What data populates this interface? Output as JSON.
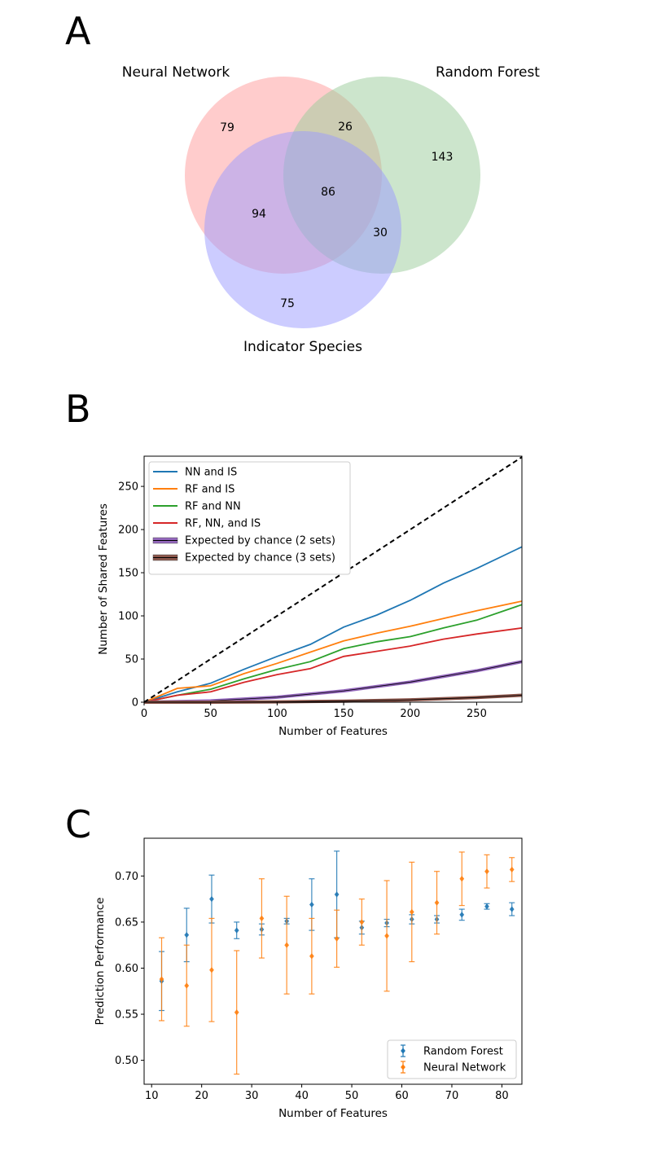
{
  "panel_labels": {
    "a": "A",
    "b": "B",
    "c": "C"
  },
  "venn": {
    "sets": [
      "Neural Network",
      "Random Forest",
      "Indicator Species"
    ],
    "colors": [
      "#ff9999",
      "#99cc99",
      "#9999ff"
    ],
    "regions": {
      "nn_only": "79",
      "rf_only": "143",
      "is_only": "75",
      "nn_rf": "26",
      "nn_is": "94",
      "rf_is": "30",
      "all": "86"
    }
  },
  "chart_data": [
    {
      "type": "line",
      "xlabel": "Number of Features",
      "ylabel": "Number of Shared Features",
      "xlim": [
        0,
        284
      ],
      "ylim": [
        0,
        285
      ],
      "xticks": [
        0,
        50,
        100,
        150,
        200,
        250
      ],
      "yticks": [
        0,
        50,
        100,
        150,
        200,
        250
      ],
      "legend_position": "upper-left",
      "grid": false,
      "series": [
        {
          "name": "NN and IS",
          "color": "#1f77b4",
          "style": "solid",
          "x": [
            0,
            25,
            50,
            75,
            100,
            125,
            150,
            175,
            200,
            225,
            250,
            284
          ],
          "y": [
            0,
            12,
            22,
            38,
            53,
            67,
            87,
            101,
            118,
            138,
            155,
            180
          ]
        },
        {
          "name": "RF and IS",
          "color": "#ff7f0e",
          "style": "solid",
          "x": [
            0,
            25,
            50,
            75,
            100,
            125,
            150,
            175,
            200,
            225,
            250,
            284
          ],
          "y": [
            0,
            16,
            19,
            33,
            45,
            58,
            71,
            80,
            88,
            97,
            106,
            117
          ]
        },
        {
          "name": "RF and NN",
          "color": "#2ca02c",
          "style": "solid",
          "x": [
            0,
            25,
            50,
            75,
            100,
            125,
            150,
            175,
            200,
            225,
            250,
            284
          ],
          "y": [
            0,
            8,
            15,
            27,
            38,
            47,
            62,
            70,
            76,
            86,
            95,
            113
          ]
        },
        {
          "name": "RF, NN, and IS",
          "color": "#d62728",
          "style": "solid",
          "x": [
            0,
            25,
            50,
            75,
            100,
            125,
            150,
            175,
            200,
            225,
            250,
            284
          ],
          "y": [
            0,
            8,
            12,
            23,
            32,
            39,
            53,
            59,
            65,
            73,
            79,
            86
          ]
        },
        {
          "name": "Expected by chance (2 sets)",
          "color": "#9467bd",
          "style": "thick",
          "x": [
            0,
            50,
            100,
            150,
            200,
            250,
            284
          ],
          "y": [
            0,
            1.5,
            5.8,
            13.1,
            23.3,
            36.4,
            47
          ]
        },
        {
          "name": "Expected by chance (3 sets)",
          "color": "#8c564b",
          "style": "thick",
          "x": [
            0,
            50,
            100,
            150,
            200,
            250,
            284
          ],
          "y": [
            0,
            0.04,
            0.35,
            1.2,
            2.7,
            5.4,
            8
          ]
        },
        {
          "name": "",
          "color": "#000000",
          "style": "dashed",
          "x": [
            0,
            284
          ],
          "y": [
            0,
            284
          ]
        }
      ]
    },
    {
      "type": "scatter",
      "xlabel": "Number of Features",
      "ylabel": "Prediction Performance",
      "xlim": [
        8.5,
        84
      ],
      "ylim": [
        0.474,
        0.741
      ],
      "xticks": [
        10,
        20,
        30,
        40,
        50,
        60,
        70,
        80
      ],
      "yticks": [
        0.5,
        0.55,
        0.6,
        0.65,
        0.7
      ],
      "legend_position": "lower-right",
      "grid": false,
      "series": [
        {
          "name": "Random Forest",
          "color": "#1f77b4",
          "x": [
            12,
            17,
            22,
            27,
            32,
            37,
            42,
            47,
            52,
            57,
            62,
            67,
            72,
            77,
            82
          ],
          "y": [
            0.586,
            0.636,
            0.675,
            0.641,
            0.642,
            0.651,
            0.669,
            0.68,
            0.644,
            0.649,
            0.653,
            0.653,
            0.658,
            0.667,
            0.664
          ],
          "err": [
            0.032,
            0.029,
            0.026,
            0.009,
            0.006,
            0.003,
            0.028,
            0.047,
            0.007,
            0.004,
            0.005,
            0.004,
            0.006,
            0.003,
            0.007
          ]
        },
        {
          "name": "Neural Network",
          "color": "#ff7f0e",
          "x": [
            12,
            17,
            22,
            27,
            32,
            37,
            42,
            47,
            52,
            57,
            62,
            67,
            72,
            77,
            82
          ],
          "y": [
            0.588,
            0.581,
            0.598,
            0.552,
            0.654,
            0.625,
            0.613,
            0.632,
            0.65,
            0.635,
            0.661,
            0.671,
            0.697,
            0.705,
            0.707
          ],
          "err": [
            0.045,
            0.044,
            0.056,
            0.067,
            0.043,
            0.053,
            0.041,
            0.031,
            0.025,
            0.06,
            0.054,
            0.034,
            0.029,
            0.018,
            0.013
          ]
        }
      ]
    }
  ]
}
